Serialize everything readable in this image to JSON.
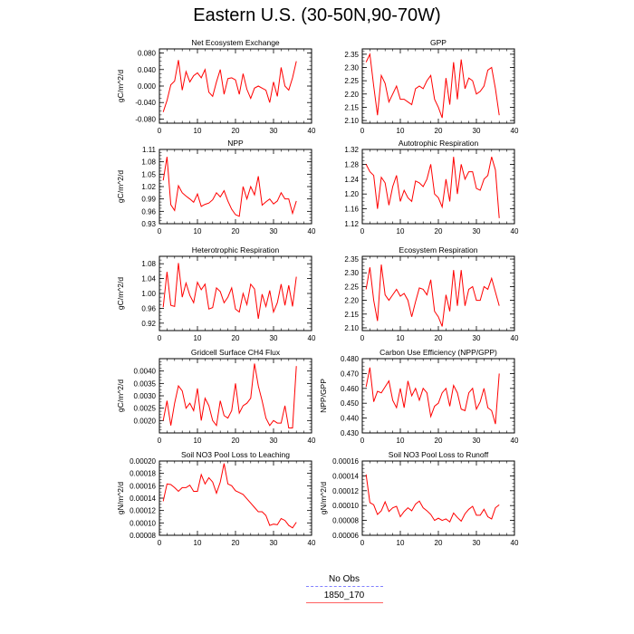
{
  "title": "Eastern U.S. (30-50N,90-70W)",
  "legend": [
    {
      "label": "No Obs",
      "color": "#8080ff",
      "dash": true
    },
    {
      "label": "1850_170",
      "color": "#ff6060",
      "dash": false
    }
  ],
  "colors": {
    "series": "#ff0000",
    "axis": "#000000"
  },
  "chart_data": [
    {
      "type": "line",
      "title": "Net Ecosystem Exchange",
      "ylabel": "gC/m^2/d",
      "xlim": [
        0,
        40
      ],
      "xticks": [
        0,
        10,
        20,
        30,
        40
      ],
      "ylim": [
        -0.09,
        0.09
      ],
      "yticks": [
        -0.08,
        -0.04,
        0.0,
        0.04,
        0.08
      ],
      "ytick_labels": [
        "-0.080",
        "-0.040",
        "0.000",
        "0.040",
        "0.080"
      ],
      "x": [
        1,
        2,
        3,
        4,
        5,
        6,
        7,
        8,
        9,
        10,
        11,
        12,
        13,
        14,
        15,
        16,
        17,
        18,
        19,
        20,
        21,
        22,
        23,
        24,
        25,
        26,
        27,
        28,
        29,
        30,
        31,
        32,
        33,
        34,
        35,
        36
      ],
      "series": [
        {
          "values": [
            -0.063,
            -0.035,
            0.003,
            0.012,
            0.063,
            -0.01,
            0.035,
            0.01,
            0.025,
            0.032,
            0.02,
            0.04,
            -0.015,
            -0.025,
            0.01,
            0.04,
            -0.02,
            0.018,
            0.02,
            0.015,
            -0.02,
            0.03,
            -0.008,
            -0.03,
            -0.005,
            0.0,
            -0.005,
            -0.01,
            -0.04,
            0.01,
            -0.025,
            0.045,
            0.0,
            -0.01,
            0.02,
            0.06
          ]
        }
      ]
    },
    {
      "type": "line",
      "title": "GPP",
      "ylabel": "",
      "xlim": [
        0,
        40
      ],
      "xticks": [
        0,
        10,
        20,
        30,
        40
      ],
      "ylim": [
        2.09,
        2.37
      ],
      "yticks": [
        2.1,
        2.15,
        2.2,
        2.25,
        2.3,
        2.35
      ],
      "ytick_labels": [
        "2.10",
        "2.15",
        "2.20",
        "2.25",
        "2.30",
        "2.35"
      ],
      "x": [
        1,
        2,
        3,
        4,
        5,
        6,
        7,
        8,
        9,
        10,
        11,
        12,
        13,
        14,
        15,
        16,
        17,
        18,
        19,
        20,
        21,
        22,
        23,
        24,
        25,
        26,
        27,
        28,
        29,
        30,
        31,
        32,
        33,
        34,
        35,
        36
      ],
      "series": [
        {
          "values": [
            2.32,
            2.35,
            2.23,
            2.12,
            2.27,
            2.24,
            2.17,
            2.2,
            2.23,
            2.18,
            2.18,
            2.17,
            2.16,
            2.22,
            2.23,
            2.22,
            2.25,
            2.27,
            2.18,
            2.15,
            2.11,
            2.26,
            2.16,
            2.32,
            2.18,
            2.33,
            2.22,
            2.26,
            2.25,
            2.2,
            2.21,
            2.23,
            2.29,
            2.3,
            2.22,
            2.12
          ]
        }
      ]
    },
    {
      "type": "line",
      "title": "NPP",
      "ylabel": "gC/m^2/d",
      "xlim": [
        0,
        40
      ],
      "xticks": [
        0,
        10,
        20,
        30,
        40
      ],
      "ylim": [
        0.93,
        1.11
      ],
      "yticks": [
        0.93,
        0.96,
        0.99,
        1.02,
        1.05,
        1.08,
        1.11
      ],
      "ytick_labels": [
        "0.93",
        "0.96",
        "0.99",
        "1.02",
        "1.05",
        "1.08",
        "1.11"
      ],
      "x": [
        1,
        2,
        3,
        4,
        5,
        6,
        7,
        8,
        9,
        10,
        11,
        12,
        13,
        14,
        15,
        16,
        17,
        18,
        19,
        20,
        21,
        22,
        23,
        24,
        25,
        26,
        27,
        28,
        29,
        30,
        31,
        32,
        33,
        34,
        35,
        36
      ],
      "series": [
        {
          "values": [
            1.035,
            1.092,
            0.976,
            0.962,
            1.022,
            1.005,
            0.997,
            0.99,
            0.982,
            1.002,
            0.972,
            0.977,
            0.98,
            0.988,
            1.005,
            0.995,
            1.01,
            0.985,
            0.965,
            0.952,
            0.948,
            1.02,
            0.99,
            1.02,
            1.0,
            1.045,
            0.975,
            0.983,
            0.99,
            0.978,
            0.985,
            1.005,
            0.99,
            0.99,
            0.955,
            0.985
          ]
        }
      ]
    },
    {
      "type": "line",
      "title": "Autotrophic Respiration",
      "ylabel": "",
      "xlim": [
        0,
        40
      ],
      "xticks": [
        0,
        10,
        20,
        30,
        40
      ],
      "ylim": [
        1.12,
        1.32
      ],
      "yticks": [
        1.12,
        1.16,
        1.2,
        1.24,
        1.28,
        1.32
      ],
      "ytick_labels": [
        "1.12",
        "1.16",
        "1.20",
        "1.24",
        "1.28",
        "1.32"
      ],
      "x": [
        1,
        2,
        3,
        4,
        5,
        6,
        7,
        8,
        9,
        10,
        11,
        12,
        13,
        14,
        15,
        16,
        17,
        18,
        19,
        20,
        21,
        22,
        23,
        24,
        25,
        26,
        27,
        28,
        29,
        30,
        31,
        32,
        33,
        34,
        35,
        36
      ],
      "series": [
        {
          "values": [
            1.28,
            1.26,
            1.25,
            1.16,
            1.245,
            1.23,
            1.17,
            1.22,
            1.25,
            1.18,
            1.21,
            1.19,
            1.18,
            1.235,
            1.23,
            1.22,
            1.24,
            1.28,
            1.2,
            1.19,
            1.165,
            1.24,
            1.18,
            1.3,
            1.2,
            1.28,
            1.24,
            1.26,
            1.26,
            1.215,
            1.21,
            1.24,
            1.25,
            1.3,
            1.265,
            1.135
          ]
        }
      ]
    },
    {
      "type": "line",
      "title": "Heterotrophic Respiration",
      "ylabel": "gC/m^2/d",
      "xlim": [
        0,
        40
      ],
      "xticks": [
        0,
        10,
        20,
        30,
        40
      ],
      "ylim": [
        0.9,
        1.1
      ],
      "yticks": [
        0.92,
        0.96,
        1.0,
        1.04,
        1.08
      ],
      "ytick_labels": [
        "0.92",
        "0.96",
        "1.00",
        "1.04",
        "1.08"
      ],
      "x": [
        1,
        2,
        3,
        4,
        5,
        6,
        7,
        8,
        9,
        10,
        11,
        12,
        13,
        14,
        15,
        16,
        17,
        18,
        19,
        20,
        21,
        22,
        23,
        24,
        25,
        26,
        27,
        28,
        29,
        30,
        31,
        32,
        33,
        34,
        35,
        36
      ],
      "series": [
        {
          "values": [
            0.963,
            1.058,
            0.968,
            0.965,
            1.082,
            0.99,
            1.028,
            0.995,
            0.975,
            1.03,
            1.01,
            1.025,
            0.958,
            0.962,
            1.015,
            1.005,
            0.975,
            0.99,
            1.015,
            0.958,
            0.95,
            1.0,
            0.97,
            1.025,
            1.012,
            0.932,
            0.998,
            0.965,
            1.008,
            0.95,
            0.975,
            1.025,
            0.968,
            1.022,
            0.965,
            1.045
          ]
        }
      ]
    },
    {
      "type": "line",
      "title": "Ecosystem Respiration",
      "ylabel": "",
      "xlim": [
        0,
        40
      ],
      "xticks": [
        0,
        10,
        20,
        30,
        40
      ],
      "ylim": [
        2.09,
        2.36
      ],
      "yticks": [
        2.1,
        2.15,
        2.2,
        2.25,
        2.3,
        2.35
      ],
      "ytick_labels": [
        "2.10",
        "2.15",
        "2.20",
        "2.25",
        "2.30",
        "2.35"
      ],
      "x": [
        1,
        2,
        3,
        4,
        5,
        6,
        7,
        8,
        9,
        10,
        11,
        12,
        13,
        14,
        15,
        16,
        17,
        18,
        19,
        20,
        21,
        22,
        23,
        24,
        25,
        26,
        27,
        28,
        29,
        30,
        31,
        32,
        33,
        34,
        35,
        36
      ],
      "series": [
        {
          "values": [
            2.24,
            2.32,
            2.2,
            2.125,
            2.33,
            2.22,
            2.2,
            2.22,
            2.24,
            2.215,
            2.225,
            2.2,
            2.14,
            2.195,
            2.245,
            2.24,
            2.22,
            2.275,
            2.16,
            2.14,
            2.105,
            2.22,
            2.16,
            2.31,
            2.18,
            2.31,
            2.18,
            2.24,
            2.25,
            2.2,
            2.2,
            2.25,
            2.24,
            2.28,
            2.23,
            2.18
          ]
        }
      ]
    },
    {
      "type": "line",
      "title": "Gridcell Surface CH4 Flux",
      "ylabel": "gC/m^2/d",
      "xlim": [
        0,
        40
      ],
      "xticks": [
        0,
        10,
        20,
        30,
        40
      ],
      "ylim": [
        0.0015,
        0.0045
      ],
      "yticks": [
        0.002,
        0.0025,
        0.003,
        0.0035,
        0.004
      ],
      "ytick_labels": [
        "0.0020",
        "0.0025",
        "0.0030",
        "0.0035",
        "0.0040"
      ],
      "x": [
        1,
        2,
        3,
        4,
        5,
        6,
        7,
        8,
        9,
        10,
        11,
        12,
        13,
        14,
        15,
        16,
        17,
        18,
        19,
        20,
        21,
        22,
        23,
        24,
        25,
        26,
        27,
        28,
        29,
        30,
        31,
        32,
        33,
        34,
        35,
        36
      ],
      "series": [
        {
          "values": [
            0.002,
            0.0028,
            0.0018,
            0.0027,
            0.0034,
            0.0032,
            0.0025,
            0.0027,
            0.0024,
            0.0033,
            0.002,
            0.0029,
            0.0026,
            0.002,
            0.0018,
            0.0028,
            0.0022,
            0.0021,
            0.0024,
            0.0035,
            0.0023,
            0.0026,
            0.0027,
            0.0029,
            0.0043,
            0.0034,
            0.0028,
            0.0021,
            0.0018,
            0.002,
            0.0019,
            0.0019,
            0.0026,
            0.0017,
            0.0017,
            0.0042
          ]
        }
      ]
    },
    {
      "type": "line",
      "title": "Carbon Use Efficiency (NPP/GPP)",
      "ylabel": "NPP/GPP",
      "xlim": [
        0,
        40
      ],
      "xticks": [
        0,
        10,
        20,
        30,
        40
      ],
      "ylim": [
        0.43,
        0.48
      ],
      "yticks": [
        0.43,
        0.44,
        0.45,
        0.46,
        0.47,
        0.48
      ],
      "ytick_labels": [
        "0.430",
        "0.440",
        "0.450",
        "0.460",
        "0.470",
        "0.480"
      ],
      "x": [
        1,
        2,
        3,
        4,
        5,
        6,
        7,
        8,
        9,
        10,
        11,
        12,
        13,
        14,
        15,
        16,
        17,
        18,
        19,
        20,
        21,
        22,
        23,
        24,
        25,
        26,
        27,
        28,
        29,
        30,
        31,
        32,
        33,
        34,
        35,
        36
      ],
      "series": [
        {
          "values": [
            0.461,
            0.474,
            0.451,
            0.458,
            0.457,
            0.461,
            0.465,
            0.452,
            0.447,
            0.46,
            0.447,
            0.465,
            0.455,
            0.46,
            0.452,
            0.46,
            0.457,
            0.441,
            0.448,
            0.45,
            0.457,
            0.46,
            0.448,
            0.462,
            0.457,
            0.446,
            0.445,
            0.457,
            0.46,
            0.446,
            0.451,
            0.46,
            0.447,
            0.445,
            0.436,
            0.47
          ]
        }
      ]
    },
    {
      "type": "line",
      "title": "Soil NO3 Pool Loss to Leaching",
      "ylabel": "gN/m^2/d",
      "xlim": [
        0,
        40
      ],
      "xticks": [
        0,
        10,
        20,
        30,
        40
      ],
      "ylim": [
        8e-05,
        0.0002
      ],
      "yticks": [
        8e-05,
        0.0001,
        0.00012,
        0.00014,
        0.00016,
        0.00018,
        0.0002
      ],
      "ytick_labels": [
        "0.00008",
        "0.00010",
        "0.00012",
        "0.00014",
        "0.00016",
        "0.00018",
        "0.00020"
      ],
      "x": [
        1,
        2,
        3,
        4,
        5,
        6,
        7,
        8,
        9,
        10,
        11,
        12,
        13,
        14,
        15,
        16,
        17,
        18,
        19,
        20,
        21,
        22,
        23,
        24,
        25,
        26,
        27,
        28,
        29,
        30,
        31,
        32,
        33,
        34,
        35,
        36
      ],
      "series": [
        {
          "values": [
            0.000135,
            0.000163,
            0.000162,
            0.000157,
            0.000151,
            0.000157,
            0.000157,
            0.000161,
            0.000151,
            0.000151,
            0.000178,
            0.000163,
            0.000173,
            0.000166,
            0.000148,
            0.000166,
            0.000196,
            0.000163,
            0.00016,
            0.000152,
            0.000149,
            0.000146,
            0.000139,
            0.000132,
            0.000125,
            0.000118,
            0.000118,
            0.000112,
            9.6e-05,
            9.8e-05,
            9.7e-05,
            0.000107,
            0.000104,
            9.6e-05,
            9.2e-05,
            0.000101
          ]
        }
      ]
    },
    {
      "type": "line",
      "title": "Soil NO3 Pool Loss to Runoff",
      "ylabel": "gN/m^2/d",
      "xlim": [
        0,
        40
      ],
      "xticks": [
        0,
        10,
        20,
        30,
        40
      ],
      "ylim": [
        6e-05,
        0.00016
      ],
      "yticks": [
        6e-05,
        8e-05,
        0.0001,
        0.00012,
        0.00014,
        0.00016
      ],
      "ytick_labels": [
        "0.00006",
        "0.00008",
        "0.00010",
        "0.00012",
        "0.00014",
        "0.00016"
      ],
      "x": [
        1,
        2,
        3,
        4,
        5,
        6,
        7,
        8,
        9,
        10,
        11,
        12,
        13,
        14,
        15,
        16,
        17,
        18,
        19,
        20,
        21,
        22,
        23,
        24,
        25,
        26,
        27,
        28,
        29,
        30,
        31,
        32,
        33,
        34,
        35,
        36
      ],
      "series": [
        {
          "values": [
            0.000142,
            0.000104,
            0.000101,
            8.8e-05,
            9.3e-05,
            0.000105,
            9.2e-05,
            9.7e-05,
            9.9e-05,
            8.5e-05,
            9.2e-05,
            9.7e-05,
            9.3e-05,
            0.000102,
            0.000106,
            9.7e-05,
            9.3e-05,
            8.8e-05,
            8e-05,
            8.3e-05,
            8e-05,
            8.2e-05,
            7.8e-05,
            9e-05,
            8.4e-05,
            7.9e-05,
            8.9e-05,
            9.5e-05,
            9.9e-05,
            8.7e-05,
            8.7e-05,
            9.5e-05,
            8.5e-05,
            8.2e-05,
            9.7e-05,
            0.000101
          ]
        }
      ]
    }
  ]
}
